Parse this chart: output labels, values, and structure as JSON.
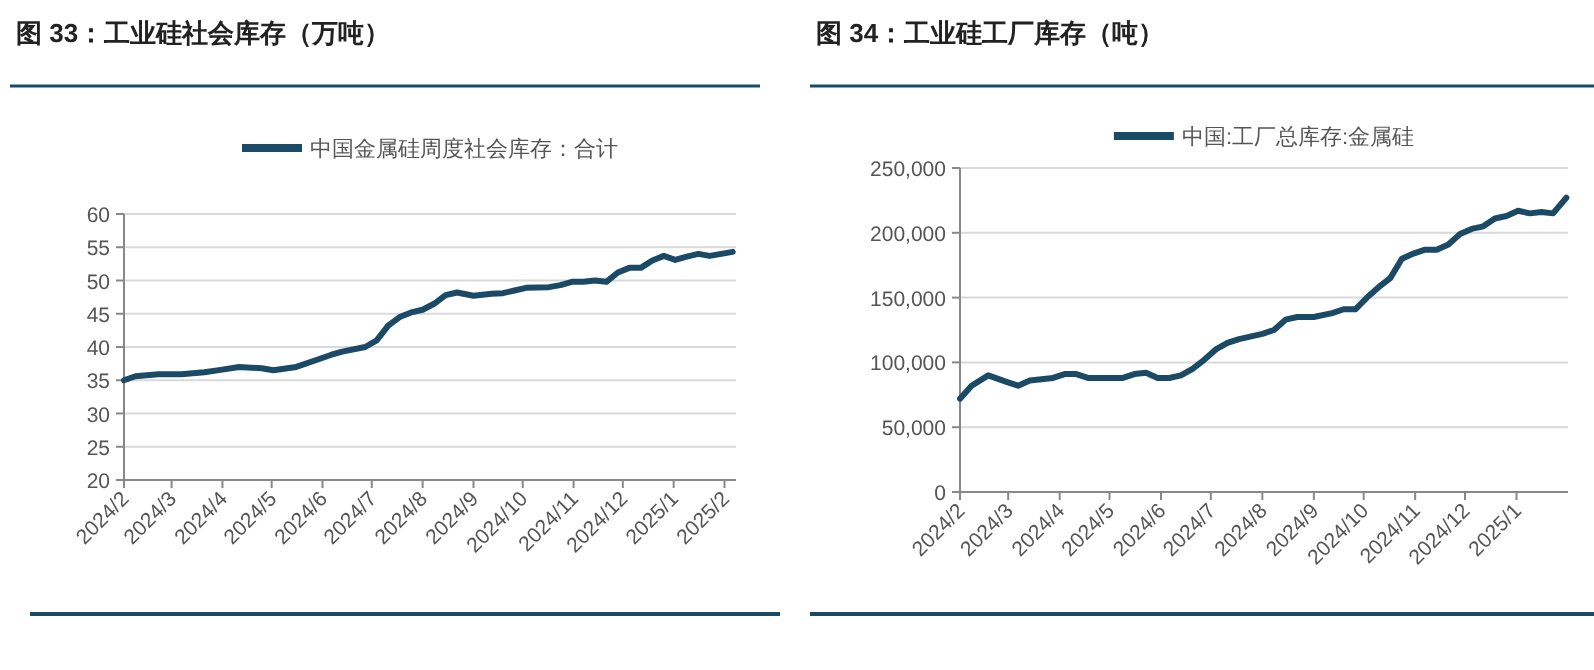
{
  "chart_data": [
    {
      "type": "line",
      "title": "图 33：工业硅社会库存（万吨）",
      "legend": "top",
      "grid": "y",
      "x": [
        "2024-02-01",
        "2024-02-08",
        "2024-02-22",
        "2024-03-07",
        "2024-03-21",
        "2024-04-01",
        "2024-04-11",
        "2024-04-25",
        "2024-05-02",
        "2024-05-16",
        "2024-05-30",
        "2024-06-06",
        "2024-06-13",
        "2024-06-27",
        "2024-07-04",
        "2024-07-11",
        "2024-07-18",
        "2024-07-25",
        "2024-08-01",
        "2024-08-08",
        "2024-08-15",
        "2024-08-22",
        "2024-09-01",
        "2024-09-12",
        "2024-09-19",
        "2024-09-26",
        "2024-10-03",
        "2024-10-17",
        "2024-10-24",
        "2024-10-31",
        "2024-11-07",
        "2024-11-14",
        "2024-11-21",
        "2024-11-28",
        "2024-12-05",
        "2024-12-12",
        "2024-12-19",
        "2024-12-26",
        "2025-01-02",
        "2025-01-09",
        "2025-01-16",
        "2025-01-23",
        "2025-01-30",
        "2025-02-06"
      ],
      "series": [
        {
          "name": "中国金属硅周度社会库存：合计",
          "color": "#1b4a66",
          "values": [
            35.0,
            35.6,
            35.9,
            35.9,
            36.2,
            36.6,
            37.0,
            36.8,
            36.5,
            37.0,
            38.2,
            38.8,
            39.3,
            40.0,
            41.0,
            43.2,
            44.5,
            45.2,
            45.6,
            46.5,
            47.8,
            48.2,
            47.7,
            48.0,
            48.1,
            48.5,
            48.9,
            49.0,
            49.3,
            49.8,
            49.8,
            50.0,
            49.8,
            51.2,
            51.9,
            51.9,
            53.0,
            53.7,
            53.1,
            53.6,
            54.0,
            53.7,
            54.0,
            54.3
          ]
        }
      ],
      "xlim": [
        "2024-02-01",
        "2025-02-08"
      ],
      "xticks": [
        {
          "value": "2024-02-01",
          "label": "2024/2"
        },
        {
          "value": "2024-03-01",
          "label": "2024/3"
        },
        {
          "value": "2024-04-01",
          "label": "2024/4"
        },
        {
          "value": "2024-05-01",
          "label": "2024/5"
        },
        {
          "value": "2024-06-01",
          "label": "2024/6"
        },
        {
          "value": "2024-07-01",
          "label": "2024/7"
        },
        {
          "value": "2024-08-01",
          "label": "2024/8"
        },
        {
          "value": "2024-09-01",
          "label": "2024/9"
        },
        {
          "value": "2024-10-01",
          "label": "2024/10"
        },
        {
          "value": "2024-11-01",
          "label": "2024/11"
        },
        {
          "value": "2024-12-01",
          "label": "2024/12"
        },
        {
          "value": "2025-01-01",
          "label": "2025/1"
        },
        {
          "value": "2025-02-01",
          "label": "2025/2"
        }
      ],
      "ylim": [
        20,
        60
      ],
      "yticks": [
        20,
        25,
        30,
        35,
        40,
        45,
        50,
        55,
        60
      ]
    },
    {
      "type": "line",
      "title": "图 34：工业硅工厂库存（吨）",
      "legend": "top",
      "grid": "y",
      "x": [
        "2024-02-01",
        "2024-02-08",
        "2024-02-18",
        "2024-02-29",
        "2024-03-07",
        "2024-03-14",
        "2024-03-28",
        "2024-04-04",
        "2024-04-11",
        "2024-04-18",
        "2024-05-02",
        "2024-05-09",
        "2024-05-16",
        "2024-05-23",
        "2024-05-30",
        "2024-06-06",
        "2024-06-13",
        "2024-06-20",
        "2024-06-27",
        "2024-07-04",
        "2024-07-11",
        "2024-07-18",
        "2024-08-01",
        "2024-08-08",
        "2024-08-15",
        "2024-08-22",
        "2024-09-01",
        "2024-09-12",
        "2024-09-19",
        "2024-09-26",
        "2024-10-03",
        "2024-10-10",
        "2024-10-17",
        "2024-10-24",
        "2024-10-31",
        "2024-11-07",
        "2024-11-14",
        "2024-11-21",
        "2024-11-28",
        "2024-12-05",
        "2024-12-12",
        "2024-12-19",
        "2024-12-26",
        "2025-01-02",
        "2025-01-09",
        "2025-01-16",
        "2025-01-23",
        "2025-01-31"
      ],
      "series": [
        {
          "name": "中国:工厂总库存:金属硅",
          "color": "#1b4a66",
          "values": [
            72000,
            82000,
            90000,
            85000,
            82000,
            86000,
            88000,
            91000,
            91000,
            88000,
            88000,
            88000,
            91000,
            92000,
            88000,
            88000,
            90000,
            95000,
            102000,
            110000,
            115000,
            118000,
            122000,
            125000,
            133000,
            135000,
            135000,
            138000,
            141000,
            141000,
            150000,
            158000,
            165000,
            180000,
            184000,
            187000,
            187000,
            191000,
            199000,
            203000,
            205000,
            211000,
            213000,
            217000,
            215000,
            216000,
            215000,
            227000
          ]
        }
      ],
      "xlim": [
        "2024-02-01",
        "2025-02-01"
      ],
      "xticks": [
        {
          "value": "2024-02-01",
          "label": "2024/2"
        },
        {
          "value": "2024-03-01",
          "label": "2024/3"
        },
        {
          "value": "2024-04-01",
          "label": "2024/4"
        },
        {
          "value": "2024-05-01",
          "label": "2024/5"
        },
        {
          "value": "2024-06-01",
          "label": "2024/6"
        },
        {
          "value": "2024-07-01",
          "label": "2024/7"
        },
        {
          "value": "2024-08-01",
          "label": "2024/8"
        },
        {
          "value": "2024-09-01",
          "label": "2024/9"
        },
        {
          "value": "2024-10-01",
          "label": "2024/10"
        },
        {
          "value": "2024-11-01",
          "label": "2024/11"
        },
        {
          "value": "2024-12-01",
          "label": "2024/12"
        },
        {
          "value": "2025-01-01",
          "label": "2025/1"
        }
      ],
      "ylim": [
        0,
        250000
      ],
      "yticks": [
        0,
        {
          "value": 50000,
          "label": "50,000"
        },
        {
          "value": 100000,
          "label": "100,000"
        },
        {
          "value": 150000,
          "label": "150,000"
        },
        {
          "value": 200000,
          "label": "200,000"
        },
        {
          "value": 250000,
          "label": "250,000"
        }
      ]
    }
  ]
}
